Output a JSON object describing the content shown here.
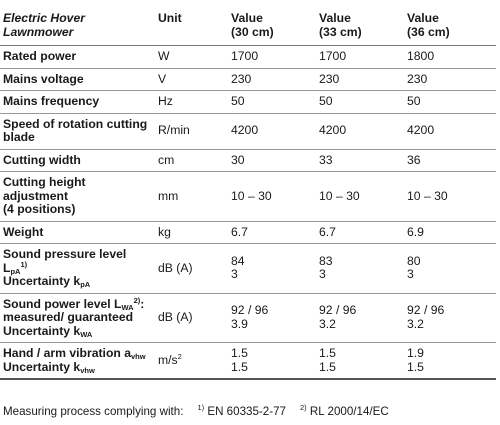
{
  "table": {
    "header": {
      "title": "Electric Hover Lawnmower",
      "unit": "Unit",
      "value_label": "Value",
      "variants": [
        "(30 cm)",
        "(33 cm)",
        "(36 cm)"
      ]
    },
    "rows": {
      "rated_power": {
        "label": "Rated power",
        "unit": "W",
        "values": [
          "1700",
          "1700",
          "1800"
        ]
      },
      "mains_voltage": {
        "label": "Mains voltage",
        "unit": "V",
        "values": [
          "230",
          "230",
          "230"
        ]
      },
      "mains_frequency": {
        "label": "Mains frequency",
        "unit": "Hz",
        "values": [
          "50",
          "50",
          "50"
        ]
      },
      "rotation_speed": {
        "label": "Speed of rotation cutting blade",
        "unit": "R/min",
        "values": [
          "4200",
          "4200",
          "4200"
        ]
      },
      "cutting_width": {
        "label": "Cutting width",
        "unit": "cm",
        "values": [
          "30",
          "33",
          "36"
        ]
      },
      "cutting_height": {
        "label_line1": "Cutting height adjustment",
        "label_line2": "(4 positions)",
        "unit": "mm",
        "values": [
          "10 – 30",
          "10 – 30",
          "10 – 30"
        ]
      },
      "weight": {
        "label": "Weight",
        "unit": "kg",
        "values": [
          "6.7",
          "6.7",
          "6.9"
        ]
      },
      "sound_pressure": {
        "label_main": "Sound pressure level L",
        "label_sub": "pA",
        "label_sup": "1)",
        "uncertainty": "Uncertainty k",
        "uncertainty_sub": "pA",
        "unit": "dB (A)",
        "values": [
          "84",
          "83",
          "80"
        ],
        "uncertainties": [
          "3",
          "3",
          "3"
        ]
      },
      "sound_power": {
        "label_main": "Sound power level L",
        "label_sub": "WA",
        "label_sup": "2)",
        "label_suffix": ":",
        "label_line2": "measured/ guaranteed",
        "uncertainty": "Uncertainty k",
        "uncertainty_sub": "WA",
        "unit": "dB (A)",
        "values": [
          "92 / 96",
          "92 / 96",
          "92 / 96"
        ],
        "uncertainties": [
          "3.9",
          "3.2",
          "3.2"
        ]
      },
      "vibration": {
        "label_main": "Hand / arm vibration a",
        "label_sub": "vhw",
        "uncertainty": "Uncertainty k",
        "uncertainty_sub": "vhw",
        "unit_main": "m/s",
        "unit_sup": "2",
        "values": [
          "1.5",
          "1.5",
          "1.9"
        ],
        "uncertainties": [
          "1.5",
          "1.5",
          "1.5"
        ]
      }
    }
  },
  "footnote": {
    "lead": "Measuring process complying with:",
    "note1_mark": "1)",
    "note1_text": "EN 60335-2-77",
    "note2_mark": "2)",
    "note2_text": "RL 2000/14/EC"
  }
}
